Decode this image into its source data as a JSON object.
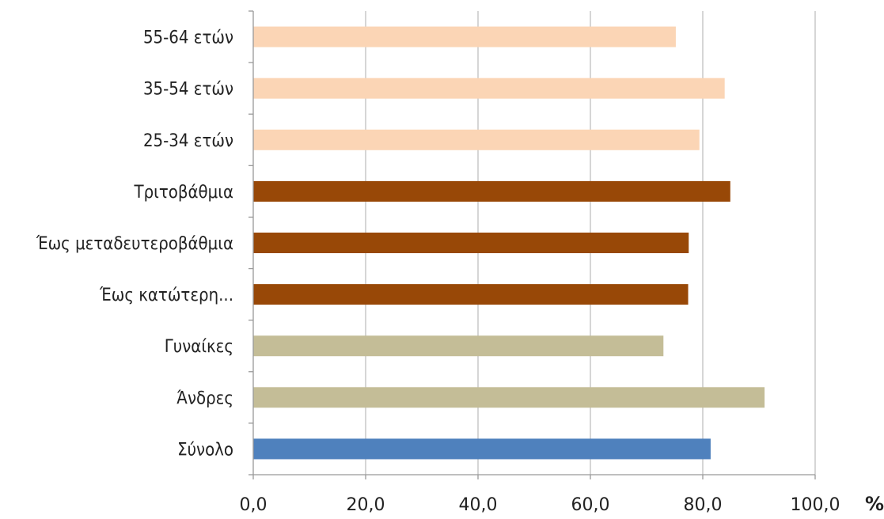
{
  "chart_data": {
    "type": "bar",
    "orientation": "horizontal",
    "categories": [
      "55-64 ετών",
      "35-54 ετών",
      "25-34 ετών",
      "Τριτοβάθμια",
      "Έως μεταδευτεροβάθμια",
      "Έως κατώτερη...",
      "Γυναίκες",
      "Άνδρες",
      "Σύνολο"
    ],
    "values": [
      75.2,
      83.9,
      79.4,
      84.9,
      77.5,
      77.4,
      73.0,
      91.0,
      81.4
    ],
    "bar_colors": [
      "#fbd5b5",
      "#fbd5b5",
      "#fbd5b5",
      "#984807",
      "#984807",
      "#984807",
      "#c4bd97",
      "#c4bd97",
      "#4f81bd"
    ],
    "xlim": [
      0,
      100
    ],
    "x_ticks": [
      "0,0",
      "20,0",
      "40,0",
      "60,0",
      "80,0",
      "100,0"
    ],
    "x_tick_values": [
      0,
      20,
      40,
      60,
      80,
      100
    ],
    "x_unit": "%",
    "grid": true,
    "legend": "none"
  }
}
